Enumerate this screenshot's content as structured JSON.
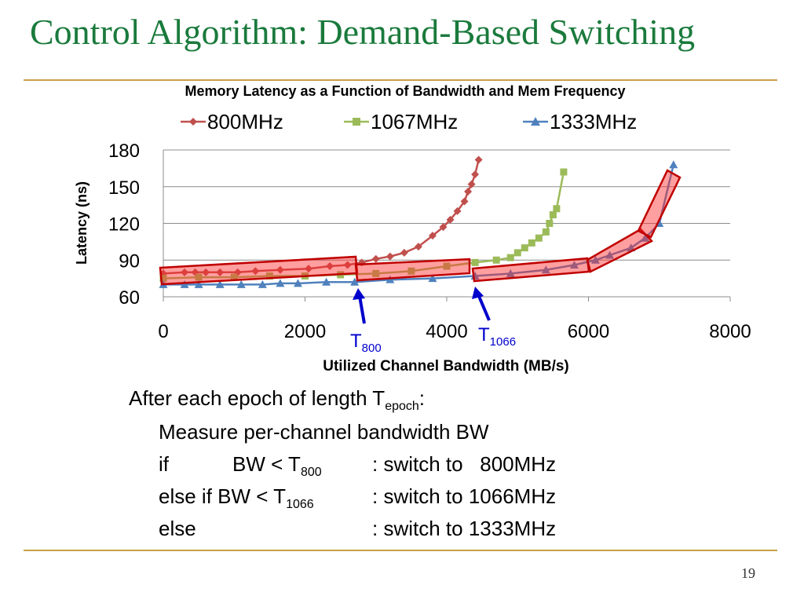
{
  "slide": {
    "title": "Control Algorithm: Demand-Based Switching",
    "page_number": "19"
  },
  "colors": {
    "title": "#1a7a3c",
    "rule": "#c8a04a",
    "series_800": "#c0504d",
    "series_1067": "#9bbb59",
    "series_1333": "#4f81bd",
    "highlight_fill": "#ff2a2a",
    "highlight_stroke": "#c00000",
    "arrow": "#0000cc"
  },
  "chart_data": {
    "type": "line",
    "title": "Memory Latency as a Function of Bandwidth and Mem Frequency",
    "xlabel": "Utilized Channel Bandwidth (MB/s)",
    "ylabel": "Latency (ns)",
    "xlim": [
      0,
      8000
    ],
    "ylim": [
      60,
      180
    ],
    "xticks": [
      "0",
      "2000",
      "4000",
      "6000",
      "8000"
    ],
    "yticks": [
      "60",
      "90",
      "120",
      "150",
      "180"
    ],
    "legend_position": "top",
    "grid": "horizontal",
    "series": [
      {
        "name": "800MHz",
        "marker": "diamond",
        "x": [
          0,
          300,
          450,
          600,
          800,
          1050,
          1300,
          1650,
          2050,
          2350,
          2600,
          2800,
          3000,
          3200,
          3400,
          3600,
          3800,
          3950,
          4050,
          4150,
          4250,
          4300,
          4350,
          4400,
          4450
        ],
        "y": [
          79,
          80,
          80,
          80,
          80,
          80,
          81,
          82,
          83,
          85,
          86,
          88,
          91,
          93,
          96,
          101,
          110,
          117,
          123,
          130,
          138,
          146,
          152,
          160,
          172
        ]
      },
      {
        "name": "1067MHz",
        "marker": "square",
        "x": [
          0,
          500,
          1000,
          1500,
          2000,
          2500,
          3000,
          3500,
          4000,
          4400,
          4700,
          4900,
          5000,
          5100,
          5200,
          5300,
          5400,
          5450,
          5500,
          5550,
          5650
        ],
        "y": [
          75,
          76,
          76,
          77,
          77,
          78,
          79,
          81,
          85,
          88,
          90,
          92,
          96,
          100,
          104,
          108,
          113,
          120,
          127,
          132,
          162
        ]
      },
      {
        "name": "1333MHz",
        "marker": "triangle",
        "x": [
          0,
          300,
          500,
          800,
          1100,
          1400,
          1650,
          1900,
          2300,
          2700,
          3200,
          3800,
          4400,
          4900,
          5400,
          5800,
          6100,
          6300,
          6600,
          6800,
          7000,
          7200
        ],
        "y": [
          70,
          70,
          70,
          70,
          70,
          70,
          71,
          71,
          72,
          72,
          74,
          75,
          77,
          79,
          82,
          86,
          90,
          94,
          100,
          108,
          120,
          168
        ]
      }
    ],
    "annotations": [
      {
        "label": "T",
        "subscript": "800",
        "x": 2800
      },
      {
        "label": "T",
        "subscript": "1066",
        "x": 4400
      }
    ]
  },
  "algorithm": {
    "intro_prefix": "After each epoch of length T",
    "intro_sub": "epoch",
    "intro_suffix": ":",
    "line1": "Measure per-channel bandwidth BW",
    "line2_a": "if",
    "line2_b": "BW < T",
    "line2_b_sub": "800",
    "line2_c": ": switch to   800MHz",
    "line3_a": "else if BW < T",
    "line3_a_sub": "1066",
    "line3_c": ": switch to 1066MHz",
    "line4_a": "else",
    "line4_c": ": switch to 1333MHz"
  }
}
